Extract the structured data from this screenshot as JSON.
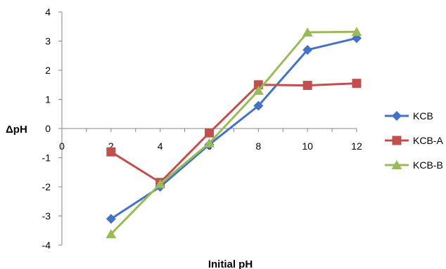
{
  "chart_data": {
    "type": "line",
    "title": "",
    "xlabel": "Initial pH",
    "ylabel": "ΔpH",
    "xlim": [
      0,
      12
    ],
    "ylim": [
      -4,
      4
    ],
    "x_ticks": [
      0,
      2,
      4,
      6,
      8,
      10,
      12
    ],
    "y_ticks": [
      -4,
      -3,
      -2,
      -1,
      0,
      1,
      2,
      3,
      4
    ],
    "x_tick_labels": [
      "0",
      "2",
      "4",
      "6",
      "8",
      "10",
      "12"
    ],
    "y_tick_labels": [
      "-4",
      "-3",
      "-2",
      "-1",
      "0",
      "1",
      "2",
      "3",
      "4"
    ],
    "grid": false,
    "legend_position": "right",
    "series": [
      {
        "name": "KCB",
        "color": "#4472C4",
        "marker": "diamond",
        "x": [
          2,
          4,
          6,
          8,
          10,
          12
        ],
        "y": [
          -3.1,
          -2.0,
          -0.55,
          0.78,
          2.7,
          3.1
        ]
      },
      {
        "name": "KCB-A",
        "color": "#C0504D",
        "marker": "square",
        "x": [
          2,
          4,
          6,
          8,
          10,
          12
        ],
        "y": [
          -0.8,
          -1.85,
          -0.15,
          1.5,
          1.48,
          1.55
        ]
      },
      {
        "name": "KCB-B",
        "color": "#9BBB59",
        "marker": "triangle",
        "x": [
          2,
          4,
          6,
          8,
          10,
          12
        ],
        "y": [
          -3.62,
          -1.9,
          -0.5,
          1.3,
          3.3,
          3.32
        ]
      }
    ]
  }
}
